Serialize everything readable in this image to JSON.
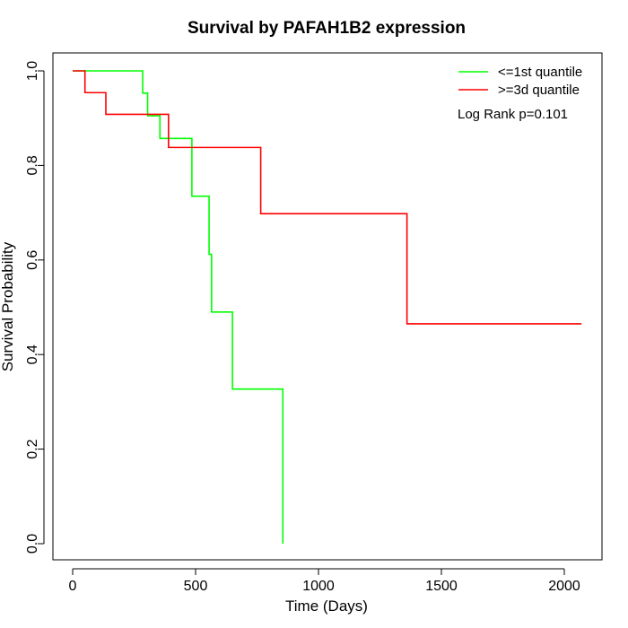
{
  "chart_data": {
    "type": "line",
    "subtype": "kaplan-meier-step",
    "title": "Survival by PAFAH1B2 expression",
    "xlabel": "Time (Days)",
    "ylabel": "Survival Probability",
    "xlim": [
      0,
      2070
    ],
    "ylim": [
      0,
      1.0
    ],
    "xticks": [
      0,
      500,
      1000,
      1500,
      2000
    ],
    "xtick_labels": [
      "0",
      "500",
      "1000",
      "1500",
      "2000"
    ],
    "yticks": [
      0.0,
      0.2,
      0.4,
      0.6,
      0.8,
      1.0
    ],
    "ytick_labels": [
      "0.0",
      "0.2",
      "0.4",
      "0.6",
      "0.8",
      "1.0"
    ],
    "grid": false,
    "legend_position": "top-right",
    "annotation": "Log Rank p=0.101",
    "series": [
      {
        "name": "<=1st quantile",
        "color": "#00ff00",
        "steps": [
          [
            0,
            1.0
          ],
          [
            285,
            0.953
          ],
          [
            305,
            0.905
          ],
          [
            355,
            0.857
          ],
          [
            485,
            0.735
          ],
          [
            555,
            0.612
          ],
          [
            565,
            0.49
          ],
          [
            650,
            0.327
          ],
          [
            855,
            0.0
          ]
        ],
        "end_x": 855
      },
      {
        "name": ">=3d quantile",
        "color": "#ff0000",
        "steps": [
          [
            0,
            1.0
          ],
          [
            50,
            0.954
          ],
          [
            135,
            0.908
          ],
          [
            390,
            0.838
          ],
          [
            765,
            0.698
          ],
          [
            1360,
            0.465
          ]
        ],
        "end_x": 2070
      }
    ]
  }
}
